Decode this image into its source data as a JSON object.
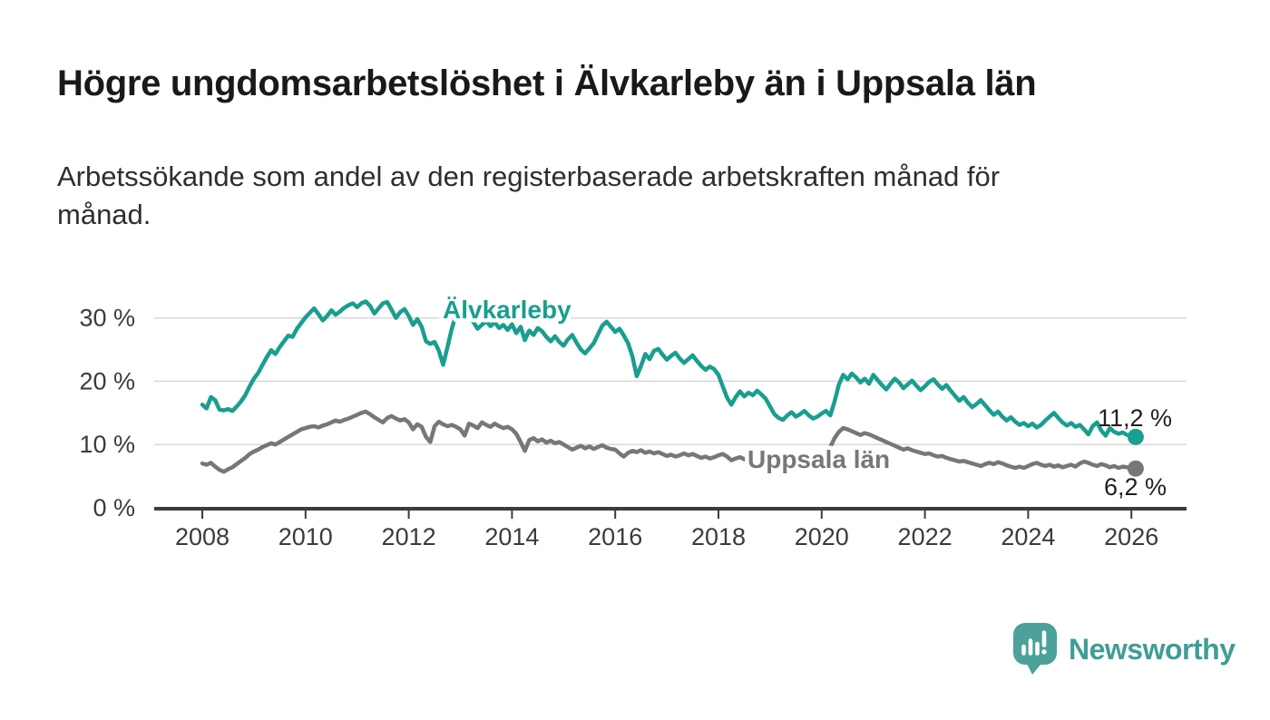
{
  "header": {
    "title_note": "bound from chart_data.title and chart_data.subtitle"
  },
  "footer": {
    "brand": "Newsworthy",
    "brand_color": "#3f9d96",
    "bubble_color": "#4ca19a",
    "logo_icon": "speech-bubble-with-bar-chart-and-exclamation"
  },
  "chart_data": {
    "type": "line",
    "title": "Högre ungdomsarbetslöshet i Älvkarleby än i Uppsala län",
    "subtitle": "Arbetssökande som andel av den registerbaserade arbetskraften månad för månad.",
    "xlabel": "",
    "ylabel": "",
    "x_unit": "month",
    "x_start": "2008-01",
    "x_end": "2026-02",
    "ylim": [
      0,
      33
    ],
    "grid": "horizontal",
    "gridline_color": "#d8d8d8",
    "axis_color": "#3c3c3c",
    "yticks": [
      {
        "value": 0,
        "label": "0 %"
      },
      {
        "value": 10,
        "label": "10 %"
      },
      {
        "value": 20,
        "label": "20 %"
      },
      {
        "value": 30,
        "label": "30 %"
      }
    ],
    "xticks": [
      {
        "value": 2008,
        "label": "2008"
      },
      {
        "value": 2010,
        "label": "2010"
      },
      {
        "value": 2012,
        "label": "2012"
      },
      {
        "value": 2014,
        "label": "2014"
      },
      {
        "value": 2016,
        "label": "2016"
      },
      {
        "value": 2018,
        "label": "2018"
      },
      {
        "value": 2020,
        "label": "2020"
      },
      {
        "value": 2022,
        "label": "2022"
      },
      {
        "value": 2024,
        "label": "2024"
      },
      {
        "value": 2026,
        "label": "2026"
      }
    ],
    "legend": "inline-series-labels",
    "series": [
      {
        "name": "Älvkarleby",
        "slug": "alvkarleby",
        "color": "#199e8f",
        "end_label": "11,2 %",
        "last_value": 11.2,
        "values": [
          16.3,
          15.7,
          17.5,
          17.0,
          15.5,
          15.4,
          15.6,
          15.3,
          16.0,
          16.8,
          17.8,
          19.2,
          20.4,
          21.3,
          22.6,
          23.8,
          24.9,
          24.3,
          25.4,
          26.3,
          27.2,
          27.0,
          28.3,
          29.2,
          30.1,
          30.8,
          31.5,
          30.6,
          29.6,
          30.3,
          31.2,
          30.5,
          31.0,
          31.6,
          32.0,
          32.3,
          31.7,
          32.3,
          32.6,
          31.9,
          30.7,
          31.5,
          32.3,
          32.5,
          31.3,
          30.0,
          30.9,
          31.4,
          30.3,
          28.9,
          29.8,
          28.6,
          26.3,
          25.9,
          26.2,
          24.8,
          22.6,
          25.4,
          28.3,
          30.5,
          30.9,
          29.6,
          30.2,
          29.4,
          28.3,
          28.9,
          29.5,
          28.7,
          29.3,
          28.4,
          28.9,
          28.1,
          29.0,
          27.6,
          28.6,
          26.5,
          28.0,
          27.3,
          28.4,
          27.9,
          27.0,
          26.3,
          27.1,
          26.2,
          25.6,
          26.6,
          27.3,
          26.1,
          25.0,
          24.4,
          25.2,
          26.0,
          27.4,
          28.8,
          29.4,
          28.6,
          27.8,
          28.3,
          27.2,
          26.0,
          23.9,
          20.8,
          22.4,
          24.3,
          23.5,
          24.8,
          25.1,
          24.2,
          23.4,
          24.0,
          24.5,
          23.6,
          22.9,
          23.5,
          24.1,
          23.2,
          22.4,
          21.8,
          22.3,
          21.9,
          21.0,
          19.2,
          17.4,
          16.3,
          17.5,
          18.4,
          17.6,
          18.2,
          17.8,
          18.5,
          17.9,
          17.2,
          16.0,
          14.8,
          14.2,
          13.9,
          14.6,
          15.1,
          14.4,
          14.8,
          15.3,
          14.6,
          14.1,
          14.4,
          14.9,
          15.3,
          14.6,
          16.8,
          19.5,
          21.0,
          20.3,
          21.2,
          20.6,
          19.8,
          20.4,
          19.6,
          21.0,
          20.2,
          19.4,
          18.7,
          19.6,
          20.4,
          19.8,
          18.9,
          19.5,
          20.1,
          19.3,
          18.6,
          19.2,
          19.9,
          20.3,
          19.5,
          18.8,
          19.4,
          18.5,
          17.7,
          16.9,
          17.5,
          16.6,
          15.9,
          16.4,
          17.0,
          16.2,
          15.4,
          14.7,
          15.2,
          14.4,
          13.8,
          14.3,
          13.6,
          13.1,
          13.4,
          12.9,
          13.3,
          12.7,
          13.1,
          13.8,
          14.4,
          15.0,
          14.2,
          13.5,
          13.0,
          13.4,
          12.8,
          13.1,
          12.4,
          11.6,
          12.9,
          13.5,
          12.2,
          11.4,
          12.6,
          12.0,
          11.7,
          11.9,
          11.5,
          11.4,
          11.2
        ]
      },
      {
        "name": "Uppsala län",
        "slug": "uppsala-lan",
        "color": "#777777",
        "end_label": "6,2 %",
        "last_value": 6.2,
        "values": [
          7.0,
          6.8,
          7.1,
          6.5,
          6.0,
          5.7,
          6.1,
          6.4,
          6.9,
          7.4,
          7.9,
          8.5,
          8.9,
          9.2,
          9.6,
          9.9,
          10.2,
          10.0,
          10.4,
          10.8,
          11.2,
          11.6,
          12.0,
          12.4,
          12.6,
          12.8,
          12.9,
          12.7,
          13.0,
          13.2,
          13.5,
          13.8,
          13.6,
          13.9,
          14.1,
          14.4,
          14.7,
          15.0,
          15.2,
          14.8,
          14.3,
          13.9,
          13.5,
          14.2,
          14.5,
          14.1,
          13.8,
          14.0,
          13.5,
          12.4,
          13.2,
          12.8,
          11.2,
          10.4,
          12.9,
          13.6,
          13.2,
          12.9,
          13.1,
          12.8,
          12.4,
          11.4,
          13.3,
          13.0,
          12.6,
          13.5,
          13.1,
          12.8,
          13.3,
          12.9,
          12.6,
          12.8,
          12.4,
          11.7,
          10.4,
          9.0,
          10.7,
          11.0,
          10.5,
          10.8,
          10.3,
          10.6,
          10.2,
          10.4,
          10.0,
          9.6,
          9.2,
          9.5,
          9.8,
          9.4,
          9.7,
          9.3,
          9.6,
          9.9,
          9.5,
          9.3,
          9.2,
          8.6,
          8.1,
          8.7,
          9.0,
          8.8,
          9.1,
          8.7,
          8.9,
          8.6,
          8.8,
          8.5,
          8.2,
          8.4,
          8.1,
          8.3,
          8.6,
          8.3,
          8.5,
          8.2,
          7.9,
          8.1,
          7.8,
          8.0,
          8.3,
          8.5,
          8.1,
          7.5,
          7.8,
          8.0,
          7.7,
          7.4,
          7.6,
          7.3,
          7.5,
          7.2,
          7.4,
          7.6,
          7.3,
          7.5,
          7.7,
          7.4,
          7.6,
          7.8,
          7.5,
          7.7,
          7.9,
          8.1,
          8.4,
          8.8,
          9.6,
          11.0,
          12.0,
          12.6,
          12.4,
          12.1,
          11.8,
          11.5,
          11.8,
          11.6,
          11.3,
          11.0,
          10.7,
          10.4,
          10.1,
          9.8,
          9.5,
          9.2,
          9.4,
          9.1,
          8.9,
          8.7,
          8.5,
          8.6,
          8.3,
          8.1,
          8.2,
          7.9,
          7.7,
          7.5,
          7.3,
          7.4,
          7.2,
          7.0,
          6.8,
          6.6,
          6.9,
          7.1,
          6.9,
          7.2,
          7.0,
          6.7,
          6.5,
          6.3,
          6.5,
          6.3,
          6.6,
          6.9,
          7.1,
          6.8,
          6.6,
          6.8,
          6.5,
          6.7,
          6.4,
          6.6,
          6.8,
          6.5,
          7.0,
          7.3,
          7.1,
          6.8,
          6.6,
          6.9,
          6.7,
          6.4,
          6.6,
          6.3,
          6.5,
          6.4,
          6.3,
          6.2
        ]
      }
    ]
  }
}
